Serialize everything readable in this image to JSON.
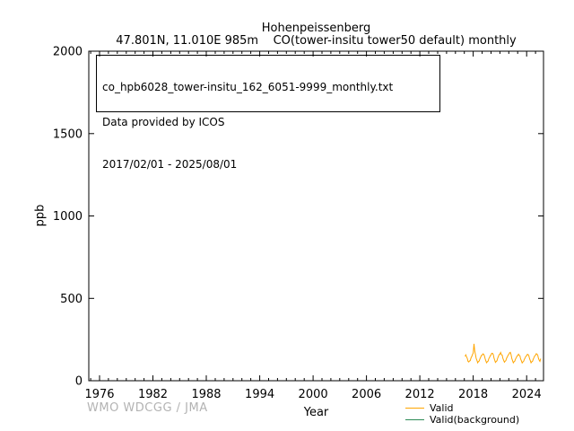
{
  "header": {
    "station": "Hohenpeissenberg",
    "subtitle": "47.801N, 11.010E 985m    CO(tower-insitu tower50 default) monthly"
  },
  "info_box": {
    "filename": "co_hpb6028_tower-insitu_162_6051-9999_monthly.txt",
    "provider": "Data provided by ICOS",
    "period": "2017/02/01 - 2025/08/01"
  },
  "watermark": "WMO WDCGG / JMA",
  "legend": [
    {
      "label": "Valid",
      "color": "#FFA500"
    },
    {
      "label": "Valid(background)",
      "color": "#2E8B57"
    }
  ],
  "chart_data": {
    "type": "line",
    "title": "Hohenpeissenberg",
    "subtitle": "47.801N, 11.010E 985m    CO(tower-insitu tower50 default) monthly",
    "xlabel": "Year",
    "ylabel": "ppb",
    "xlim": [
      1974.79,
      2025.9
    ],
    "ylim": [
      0,
      2000
    ],
    "x_major_ticks": [
      1976,
      1982,
      1988,
      1994,
      2000,
      2006,
      2012,
      2018,
      2024
    ],
    "x_minor_step": 1,
    "y_major_ticks": [
      0,
      500,
      1000,
      1500,
      2000
    ],
    "grid": false,
    "legend_position": "bottom-right-outside",
    "series": [
      {
        "name": "Valid",
        "color": "#FFA500",
        "x_start": 2017.0833,
        "x_step": 0.0833,
        "period": "2017/02 - 2025/08 monthly",
        "values": [
          148,
          157,
          144,
          136,
          118,
          114,
          120,
          122,
          139,
          147,
          159,
          168,
          224,
          181,
          160,
          136,
          123,
          109,
          116,
          119,
          133,
          142,
          153,
          155,
          163,
          161,
          153,
          134,
          121,
          109,
          115,
          119,
          134,
          141,
          151,
          157,
          167,
          166,
          159,
          138,
          125,
          111,
          117,
          121,
          137,
          147,
          159,
          161,
          171,
          158,
          156,
          136,
          125,
          112,
          118,
          122,
          136,
          145,
          156,
          159,
          169,
          172,
          159,
          136,
          123,
          109,
          115,
          118,
          132,
          139,
          150,
          152,
          161,
          154,
          151,
          132,
          121,
          108,
          114,
          117,
          131,
          138,
          149,
          151,
          160,
          159,
          152,
          133,
          122,
          109,
          115,
          118,
          132,
          140,
          151,
          154,
          164,
          162,
          154,
          135,
          125,
          117,
          134
        ]
      },
      {
        "name": "Valid(background)",
        "color": "#2E8B57",
        "x_start": 2017.0833,
        "x_step": 0.0833,
        "values": []
      }
    ]
  }
}
